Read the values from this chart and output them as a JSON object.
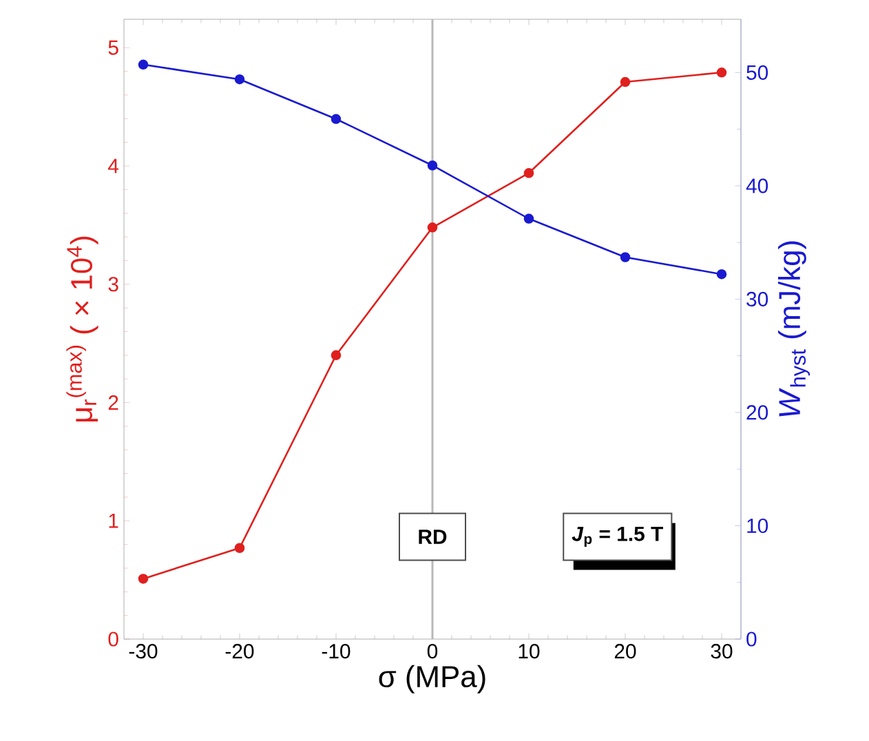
{
  "chart_data": {
    "type": "line",
    "xlabel": "σ   (MPa)",
    "ylabel": "μ$_{r}$$^{(max)}$  ( × 10$^{4}$)",
    "y2label": "*W*$_{hyst}$  (mJ/kg)",
    "x": [
      -30,
      -20,
      -10,
      0,
      10,
      20,
      30
    ],
    "series": [
      {
        "color": "#e0201e",
        "values": [
          0.51,
          0.77,
          2.4,
          3.48,
          3.94,
          4.71,
          4.79
        ]
      },
      {
        "color": "#1a1ad0",
        "axis": "y2",
        "values": [
          50.7,
          49.4,
          45.9,
          41.8,
          37.1,
          33.7,
          32.2
        ]
      }
    ],
    "xlim": [
      -32,
      32
    ],
    "xticks": [
      -30,
      -20,
      -10,
      0,
      10,
      20,
      30
    ],
    "ylim": [
      0,
      5.24
    ],
    "yticks": [
      0,
      1,
      2,
      3,
      4,
      5
    ],
    "y2lim": [
      0,
      54.7
    ],
    "y2ticks": [
      0,
      10,
      20,
      30,
      40,
      50
    ],
    "ref_lines": [
      {
        "axis": "x",
        "value": 0,
        "color": "#b8b8b8"
      }
    ],
    "annotations": [
      "RD",
      "*J*$_{p}$ = 1.5 T"
    ],
    "marker": "circle",
    "line_style": "solid",
    "grid": false
  }
}
